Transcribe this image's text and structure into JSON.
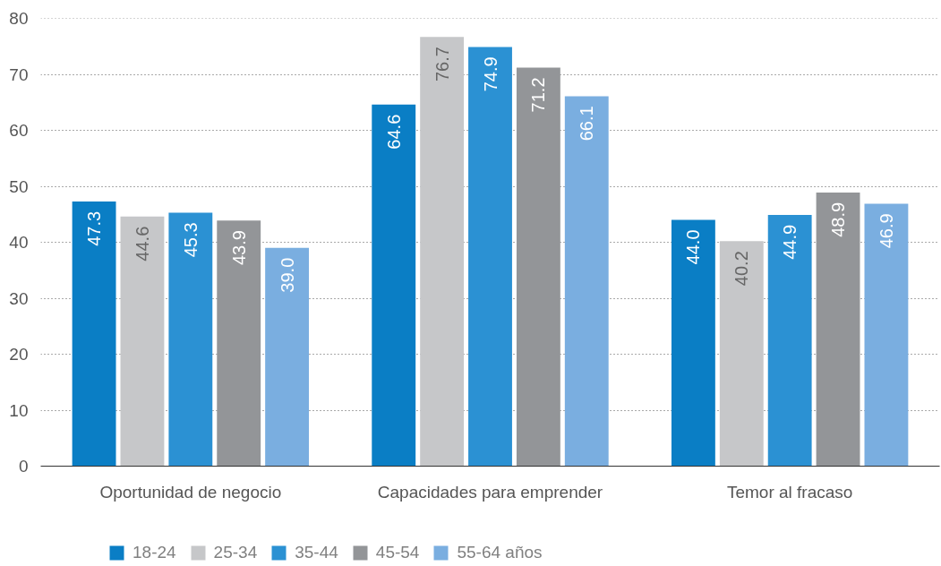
{
  "chart_data": {
    "type": "bar",
    "categories": [
      "Oportunidad de negocio",
      "Capacidades para emprender",
      "Temor al fracaso"
    ],
    "series": [
      {
        "name": "18-24",
        "color": "#0a7ec5",
        "values": [
          47.3,
          64.6,
          44.0
        ],
        "value_labels": [
          "47.3",
          "64.6",
          "44.0"
        ]
      },
      {
        "name": "25-34",
        "color": "#c6c7c9",
        "values": [
          44.6,
          76.7,
          40.2
        ],
        "value_labels": [
          "44.6",
          "76.7",
          "40.2"
        ]
      },
      {
        "name": "35-44",
        "color": "#2b91d3",
        "values": [
          45.3,
          74.9,
          44.9
        ],
        "value_labels": [
          "45.3",
          "74.9",
          "44.9"
        ]
      },
      {
        "name": "45-54",
        "color": "#939598",
        "values": [
          43.9,
          71.2,
          48.9
        ],
        "value_labels": [
          "43.9",
          "71.2",
          "48.9"
        ]
      },
      {
        "name": "55-64 años",
        "color": "#7aaee0",
        "values": [
          39.0,
          66.1,
          46.9
        ],
        "value_labels": [
          "39.0",
          "66.1",
          "46.9"
        ]
      }
    ],
    "ylim": [
      0,
      80
    ],
    "yticks": [
      0,
      10,
      20,
      30,
      40,
      50,
      60,
      70,
      80
    ],
    "grid": "y",
    "legend": "bottom left"
  }
}
